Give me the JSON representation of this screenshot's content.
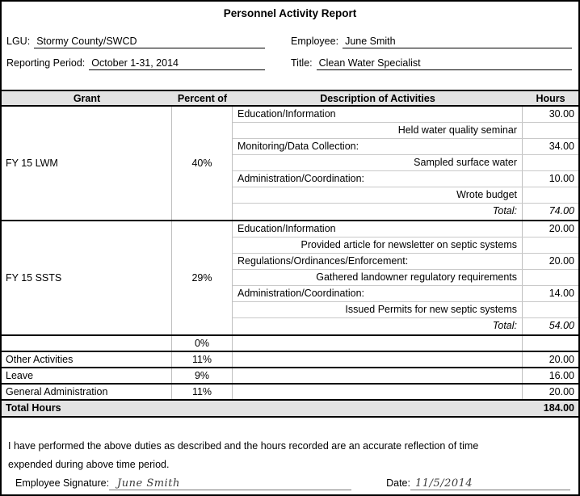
{
  "title": "Personnel Activity Report",
  "form": {
    "lgu_label": "LGU:",
    "lgu_value": "Stormy County/SWCD",
    "period_label": "Reporting Period:",
    "period_value": "October 1-31, 2014",
    "employee_label": "Employee:",
    "employee_value": "June Smith",
    "title_label": "Title:",
    "title_value": "Clean Water Specialist"
  },
  "table": {
    "headers": {
      "grant": "Grant",
      "percent": "Percent of",
      "description": "Description of Activities",
      "hours": "Hours"
    },
    "grant_blocks": [
      {
        "grant": "FY 15 LWM",
        "percent": "40%",
        "rows": [
          {
            "desc": "Education/Information",
            "hours": "30.00"
          },
          {
            "desc": "Held water quality seminar",
            "hours": ""
          },
          {
            "desc": "Monitoring/Data Collection:",
            "hours": "34.00"
          },
          {
            "desc": "Sampled surface water",
            "hours": ""
          },
          {
            "desc": "Administration/Coordination:",
            "hours": "10.00"
          },
          {
            "desc": "Wrote budget",
            "hours": ""
          },
          {
            "desc": "Total:",
            "hours": "74.00"
          }
        ]
      },
      {
        "grant": "FY 15 SSTS",
        "percent": "29%",
        "rows": [
          {
            "desc": "Education/Information",
            "hours": "20.00"
          },
          {
            "desc": "Provided article for newsletter on septic systems",
            "hours": ""
          },
          {
            "desc": "Regulations/Ordinances/Enforcement:",
            "hours": "20.00"
          },
          {
            "desc": "Gathered landowner regulatory requirements",
            "hours": ""
          },
          {
            "desc": "Administration/Coordination:",
            "hours": "14.00"
          },
          {
            "desc": "Issued Permits for new septic systems",
            "hours": ""
          },
          {
            "desc": "Total:",
            "hours": "54.00"
          }
        ]
      }
    ],
    "summary_rows": [
      {
        "grant": "",
        "percent": "0%",
        "hours": ""
      },
      {
        "grant": "Other Activities",
        "percent": "11%",
        "hours": "20.00"
      },
      {
        "grant": "Leave",
        "percent": "9%",
        "hours": "16.00"
      },
      {
        "grant": "General Administration",
        "percent": "11%",
        "hours": "20.00"
      }
    ],
    "total_row": {
      "label": "Total Hours",
      "hours": "184.00"
    }
  },
  "footer": {
    "statement": "I have performed the above duties as described and the hours recorded are an accurate reflection of time\nexpended during above time period.",
    "signature_label": "Employee Signature:",
    "signature_value": "June Smith",
    "date_label": "Date:",
    "date_value": "11/5/2014"
  },
  "colors": {
    "header_bg": "#E3E3E3",
    "grid_line": "#BFBFBF",
    "border": "#000000"
  }
}
